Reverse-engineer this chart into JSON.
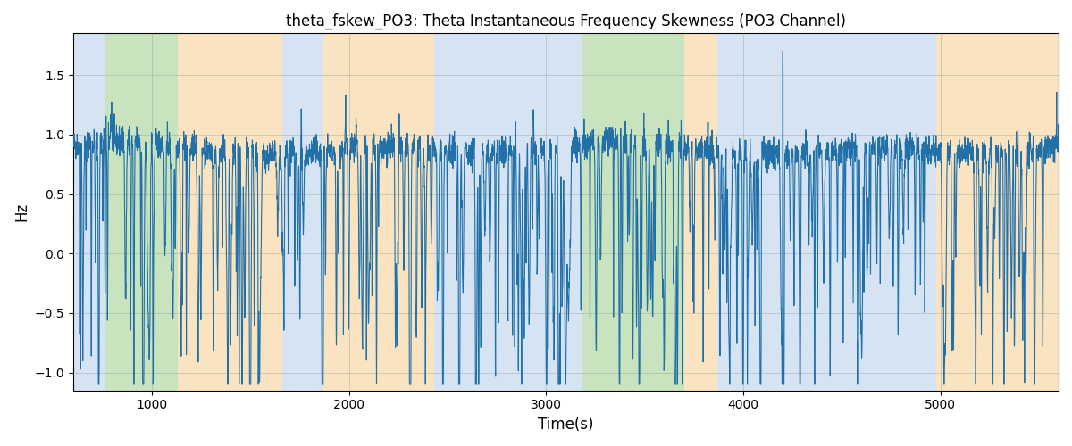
{
  "title": "theta_fskew_PO3: Theta Instantaneous Frequency Skewness (PO3 Channel)",
  "xlabel": "Time(s)",
  "ylabel": "Hz",
  "xlim": [
    600,
    5600
  ],
  "ylim": [
    -1.15,
    1.85
  ],
  "line_color": "#2171a8",
  "line_width": 0.8,
  "background_color": "#ffffff",
  "bg_bands": [
    {
      "xmin": 600,
      "xmax": 760,
      "color": "#adc9e8",
      "alpha": 0.5
    },
    {
      "xmin": 760,
      "xmax": 1130,
      "color": "#92c87e",
      "alpha": 0.5
    },
    {
      "xmin": 1130,
      "xmax": 1660,
      "color": "#f5c882",
      "alpha": 0.5
    },
    {
      "xmin": 1660,
      "xmax": 1870,
      "color": "#adc9e8",
      "alpha": 0.5
    },
    {
      "xmin": 1870,
      "xmax": 2430,
      "color": "#f5c882",
      "alpha": 0.5
    },
    {
      "xmin": 2430,
      "xmax": 3060,
      "color": "#adc9e8",
      "alpha": 0.5
    },
    {
      "xmin": 3060,
      "xmax": 3180,
      "color": "#adc9e8",
      "alpha": 0.5
    },
    {
      "xmin": 3180,
      "xmax": 3700,
      "color": "#92c87e",
      "alpha": 0.5
    },
    {
      "xmin": 3700,
      "xmax": 3870,
      "color": "#f5c882",
      "alpha": 0.5
    },
    {
      "xmin": 3870,
      "xmax": 4980,
      "color": "#adc9e8",
      "alpha": 0.5
    },
    {
      "xmin": 4980,
      "xmax": 5600,
      "color": "#f5c882",
      "alpha": 0.5
    }
  ],
  "yticks": [
    -1.0,
    -0.5,
    0.0,
    0.5,
    1.0,
    1.5
  ],
  "xticks": [
    1000,
    2000,
    3000,
    4000,
    5000
  ],
  "seed": 42,
  "n_points": 5000,
  "x_start": 600,
  "x_end": 5600
}
